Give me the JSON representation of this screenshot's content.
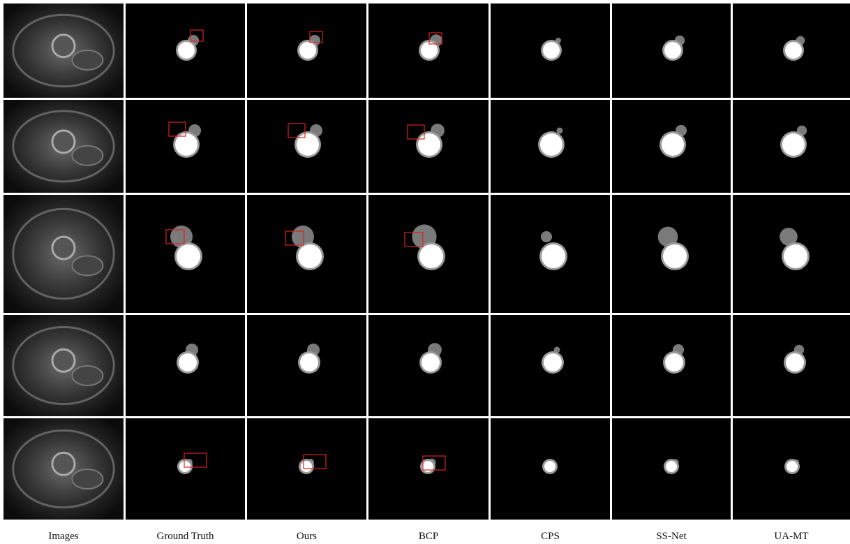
{
  "columns": [
    "Images",
    "Ground Truth",
    "Ours",
    "BCP",
    "CPS",
    "SS-Net",
    "UA-MT"
  ]
}
